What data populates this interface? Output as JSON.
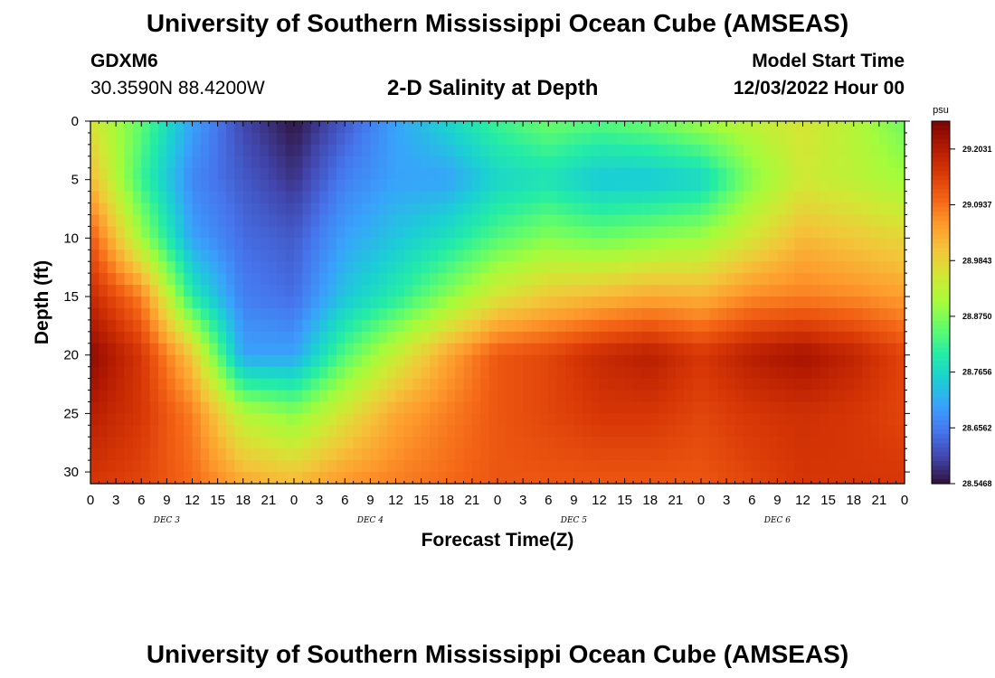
{
  "header": {
    "title": "University of Southern Mississippi Ocean Cube (AMSEAS)",
    "station_id": "GDXM6",
    "location": "30.3590N  88.4200W",
    "plot_title": "2-D Salinity at Depth",
    "model_start_label": "Model Start Time",
    "model_start_value": "12/03/2022 Hour 00"
  },
  "footer": {
    "title": "University of Southern Mississippi Ocean Cube (AMSEAS)"
  },
  "colors": {
    "background": "#ffffff",
    "axis": "#000000",
    "colormap": [
      "#30123b",
      "#4145ab",
      "#4675ed",
      "#39a2fc",
      "#1bcfd4",
      "#24eca6",
      "#61fc6c",
      "#a4fc3b",
      "#d1e834",
      "#f3c63a",
      "#fe9b2d",
      "#f36315",
      "#d93806",
      "#b11901",
      "#7a0402"
    ]
  },
  "chart_data": {
    "type": "heatmap",
    "title": "2-D Salinity at Depth",
    "xlabel": "Forecast Time(Z)",
    "ylabel": "Depth (ft)",
    "x_tick_labels": [
      "0",
      "3",
      "6",
      "9",
      "12",
      "15",
      "18",
      "21",
      "0",
      "3",
      "6",
      "9",
      "12",
      "15",
      "18",
      "21",
      "0",
      "3",
      "6",
      "9",
      "12",
      "15",
      "18",
      "21",
      "0",
      "3",
      "6",
      "9",
      "12",
      "15",
      "18",
      "21",
      "0"
    ],
    "day_labels": [
      {
        "label": "DEC 3",
        "hour": 9
      },
      {
        "label": "DEC 4",
        "hour": 33
      },
      {
        "label": "DEC 5",
        "hour": 57
      },
      {
        "label": "DEC 6",
        "hour": 81
      }
    ],
    "xlim": [
      0,
      96
    ],
    "y_ticks": [
      0,
      5,
      10,
      15,
      20,
      25,
      30
    ],
    "ylim": [
      0,
      31
    ],
    "y_inverted": true,
    "colorbar": {
      "unit": "psu",
      "range": [
        28.5468,
        29.2578
      ],
      "tick_values": [
        29.2031,
        29.0937,
        28.9843,
        28.875,
        28.7656,
        28.6562,
        28.5468
      ],
      "tick_labels": [
        "29.2031",
        "29.0937",
        "28.9843",
        "28.8750",
        "28.7656",
        "28.6562",
        "28.5468"
      ]
    },
    "x_hours": [
      0,
      6,
      12,
      18,
      24,
      30,
      36,
      42,
      48,
      54,
      60,
      66,
      72,
      78,
      84,
      90,
      96
    ],
    "depths": [
      0,
      5,
      10,
      15,
      20,
      25,
      31
    ],
    "values": [
      [
        28.96,
        28.85,
        28.7,
        28.6,
        28.55,
        28.62,
        28.7,
        28.76,
        28.82,
        28.86,
        28.84,
        28.86,
        28.9,
        28.93,
        28.96,
        28.92,
        28.86
      ],
      [
        29.02,
        28.82,
        28.67,
        28.62,
        28.58,
        28.66,
        28.7,
        28.7,
        28.76,
        28.78,
        28.74,
        28.74,
        28.76,
        28.88,
        28.95,
        28.93,
        28.9
      ],
      [
        29.12,
        28.9,
        28.7,
        28.64,
        28.62,
        28.7,
        28.74,
        28.78,
        28.84,
        28.88,
        28.86,
        28.88,
        28.9,
        28.96,
        29.02,
        29.0,
        28.98
      ],
      [
        29.18,
        29.08,
        28.8,
        28.66,
        28.64,
        28.74,
        28.8,
        28.88,
        28.96,
        29.0,
        29.02,
        29.04,
        29.03,
        29.07,
        29.08,
        29.07,
        29.05
      ],
      [
        29.24,
        29.16,
        29.0,
        28.7,
        28.7,
        28.84,
        28.94,
        29.04,
        29.12,
        29.14,
        29.18,
        29.2,
        29.16,
        29.2,
        29.22,
        29.19,
        29.14
      ],
      [
        29.2,
        29.16,
        29.08,
        28.92,
        28.88,
        28.96,
        29.04,
        29.08,
        29.12,
        29.14,
        29.16,
        29.16,
        29.14,
        29.16,
        29.17,
        29.16,
        29.14
      ],
      [
        29.16,
        29.14,
        29.1,
        29.04,
        29.02,
        29.06,
        29.08,
        29.1,
        29.12,
        29.12,
        29.12,
        29.12,
        29.12,
        29.14,
        29.16,
        29.16,
        29.16
      ]
    ]
  }
}
